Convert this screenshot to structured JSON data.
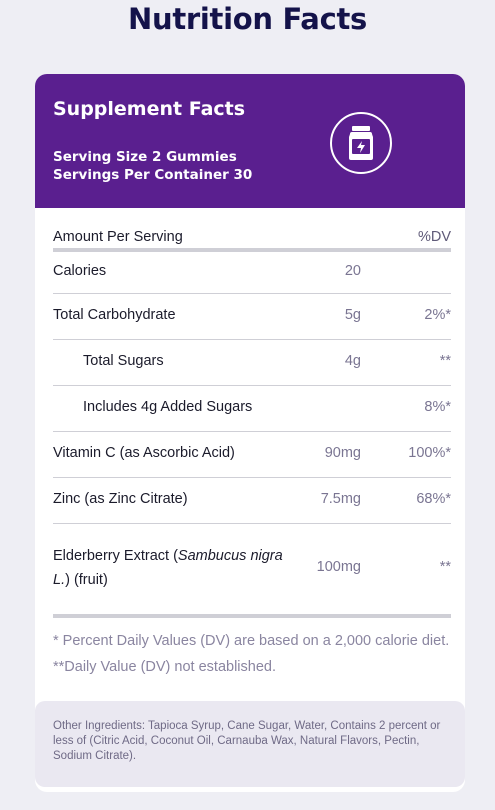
{
  "page": {
    "title": "Nutrition Facts"
  },
  "header": {
    "title": "Supplement Facts",
    "serving_size": "Serving Size 2 Gummies",
    "servings_per_container": "Servings Per Container 30",
    "badge_icon": "supplement-jar-icon",
    "background_color": "#5a1f8f"
  },
  "table": {
    "heading_label": "Amount Per Serving",
    "heading_dv": "%DV",
    "rows": [
      {
        "label": "Calories",
        "amount": "20",
        "dv": ""
      },
      {
        "label": "Total Carbohydrate",
        "amount": "5g",
        "dv": "2%*"
      },
      {
        "label": "Total Sugars",
        "amount": "4g",
        "dv": "**"
      },
      {
        "label": "Includes 4g Added Sugars",
        "amount": "",
        "dv": "8%*"
      },
      {
        "label": "Vitamin C (as Ascorbic Acid)",
        "amount": "90mg",
        "dv": "100%*"
      },
      {
        "label": "Zinc (as Zinc Citrate)",
        "amount": "7.5mg",
        "dv": "68%*"
      },
      {
        "label_prefix": "Elderberry Extract (",
        "label_italic": "Sambucus nigra L.",
        "label_suffix": ") (fruit)",
        "amount": "100mg",
        "dv": "**"
      }
    ]
  },
  "footnote": "* Percent Daily Values (DV) are based on a 2,000 calorie diet. **Daily Value (DV) not established.",
  "ingredients": "Other Ingredients: Tapioca Syrup, Cane Sugar, Water, Contains 2 percent or less of (Citric Acid, Coconut Oil, Carnauba Wax, Natural Flavors, Pectin, Sodium Citrate)."
}
